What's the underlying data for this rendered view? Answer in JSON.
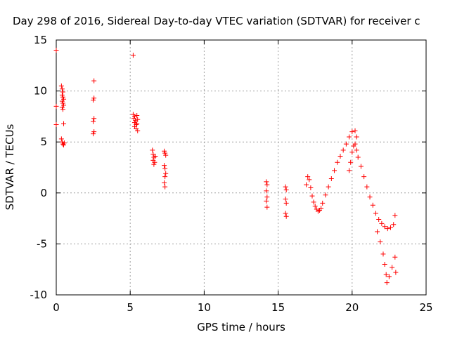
{
  "chart_data": {
    "type": "scatter",
    "title": "Day 298 of 2016, Sidereal Day-to-day VTEC variation (SDTVAR) for receiver c",
    "xlabel": "GPS time / hours",
    "ylabel": "SDTVAR / TECUs",
    "xlim": [
      0,
      25
    ],
    "ylim": [
      -10,
      15
    ],
    "xticks": [
      "0",
      "5",
      "10",
      "15",
      "20",
      "25"
    ],
    "yticks": [
      "-10",
      "-5",
      "0",
      "5",
      "10",
      "15"
    ],
    "grid": true,
    "marker": "plus",
    "color": "#ff0000",
    "series": [
      {
        "points": [
          [
            0.0,
            14.0
          ],
          [
            0.0,
            8.5
          ],
          [
            0.0,
            6.7
          ],
          [
            0.35,
            10.5
          ],
          [
            0.4,
            10.2
          ],
          [
            0.45,
            9.9
          ],
          [
            0.4,
            9.6
          ],
          [
            0.45,
            9.4
          ],
          [
            0.5,
            9.2
          ],
          [
            0.4,
            9.0
          ],
          [
            0.45,
            8.8
          ],
          [
            0.5,
            8.6
          ],
          [
            0.4,
            8.4
          ],
          [
            0.45,
            8.2
          ],
          [
            0.5,
            6.8
          ],
          [
            0.35,
            5.3
          ],
          [
            0.4,
            5.0
          ],
          [
            0.45,
            4.8
          ],
          [
            0.5,
            4.7
          ],
          [
            0.55,
            4.9
          ],
          [
            2.55,
            11.0
          ],
          [
            2.55,
            9.3
          ],
          [
            2.5,
            9.1
          ],
          [
            2.55,
            7.3
          ],
          [
            2.5,
            7.0
          ],
          [
            2.55,
            6.0
          ],
          [
            2.5,
            5.8
          ],
          [
            5.2,
            13.5
          ],
          [
            5.2,
            7.7
          ],
          [
            5.3,
            7.5
          ],
          [
            5.25,
            7.3
          ],
          [
            5.35,
            7.1
          ],
          [
            5.3,
            6.9
          ],
          [
            5.4,
            6.7
          ],
          [
            5.3,
            6.5
          ],
          [
            5.4,
            6.3
          ],
          [
            5.5,
            6.1
          ],
          [
            5.45,
            7.6
          ],
          [
            5.5,
            7.2
          ],
          [
            5.45,
            6.8
          ],
          [
            6.5,
            4.2
          ],
          [
            6.55,
            3.8
          ],
          [
            6.6,
            3.5
          ],
          [
            6.55,
            3.2
          ],
          [
            6.65,
            3.0
          ],
          [
            6.6,
            2.8
          ],
          [
            6.7,
            3.6
          ],
          [
            7.3,
            4.1
          ],
          [
            7.35,
            3.9
          ],
          [
            7.4,
            3.7
          ],
          [
            7.3,
            2.7
          ],
          [
            7.35,
            2.4
          ],
          [
            7.4,
            1.9
          ],
          [
            7.35,
            1.6
          ],
          [
            7.3,
            1.0
          ],
          [
            7.35,
            0.6
          ],
          [
            14.2,
            1.1
          ],
          [
            14.25,
            0.8
          ],
          [
            14.2,
            0.2
          ],
          [
            14.25,
            -0.4
          ],
          [
            14.2,
            -0.8
          ],
          [
            14.25,
            -1.4
          ],
          [
            15.5,
            0.6
          ],
          [
            15.55,
            0.3
          ],
          [
            15.5,
            -0.6
          ],
          [
            15.55,
            -1.0
          ],
          [
            15.5,
            -2.0
          ],
          [
            15.55,
            -2.3
          ],
          [
            16.9,
            0.8
          ],
          [
            17.0,
            1.6
          ],
          [
            17.1,
            1.3
          ],
          [
            17.2,
            0.5
          ],
          [
            17.3,
            -0.3
          ],
          [
            17.4,
            -0.9
          ],
          [
            17.5,
            -1.3
          ],
          [
            17.6,
            -1.6
          ],
          [
            17.7,
            -1.8
          ],
          [
            17.8,
            -1.7
          ],
          [
            17.9,
            -1.5
          ],
          [
            18.0,
            -1.0
          ],
          [
            18.2,
            -0.2
          ],
          [
            18.4,
            0.6
          ],
          [
            18.6,
            1.4
          ],
          [
            18.8,
            2.2
          ],
          [
            19.0,
            3.0
          ],
          [
            19.2,
            3.6
          ],
          [
            19.4,
            4.2
          ],
          [
            19.6,
            4.8
          ],
          [
            19.8,
            5.5
          ],
          [
            20.0,
            6.0
          ],
          [
            20.2,
            6.1
          ],
          [
            20.3,
            5.5
          ],
          [
            19.8,
            2.2
          ],
          [
            19.9,
            3.0
          ],
          [
            20.0,
            4.0
          ],
          [
            20.1,
            4.6
          ],
          [
            20.2,
            4.8
          ],
          [
            20.3,
            4.2
          ],
          [
            20.4,
            3.5
          ],
          [
            20.6,
            2.6
          ],
          [
            20.8,
            1.6
          ],
          [
            21.0,
            0.6
          ],
          [
            21.2,
            -0.4
          ],
          [
            21.4,
            -1.2
          ],
          [
            21.6,
            -2.0
          ],
          [
            21.8,
            -2.6
          ],
          [
            22.0,
            -3.0
          ],
          [
            22.2,
            -3.3
          ],
          [
            22.4,
            -3.5
          ],
          [
            22.6,
            -3.4
          ],
          [
            22.8,
            -3.1
          ],
          [
            22.9,
            -2.2
          ],
          [
            21.7,
            -3.8
          ],
          [
            21.9,
            -4.8
          ],
          [
            22.1,
            -6.0
          ],
          [
            22.2,
            -7.0
          ],
          [
            22.3,
            -8.0
          ],
          [
            22.35,
            -8.8
          ],
          [
            22.5,
            -8.2
          ],
          [
            22.7,
            -7.3
          ],
          [
            22.9,
            -6.3
          ],
          [
            22.95,
            -7.8
          ]
        ]
      }
    ]
  }
}
